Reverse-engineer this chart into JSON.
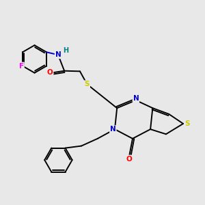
{
  "bg_color": "#e8e8e8",
  "bond_color": "#000000",
  "atom_colors": {
    "N": "#0000cc",
    "O": "#ff0000",
    "S": "#cccc00",
    "F": "#ff00ff",
    "H": "#008080",
    "C": "#000000"
  }
}
